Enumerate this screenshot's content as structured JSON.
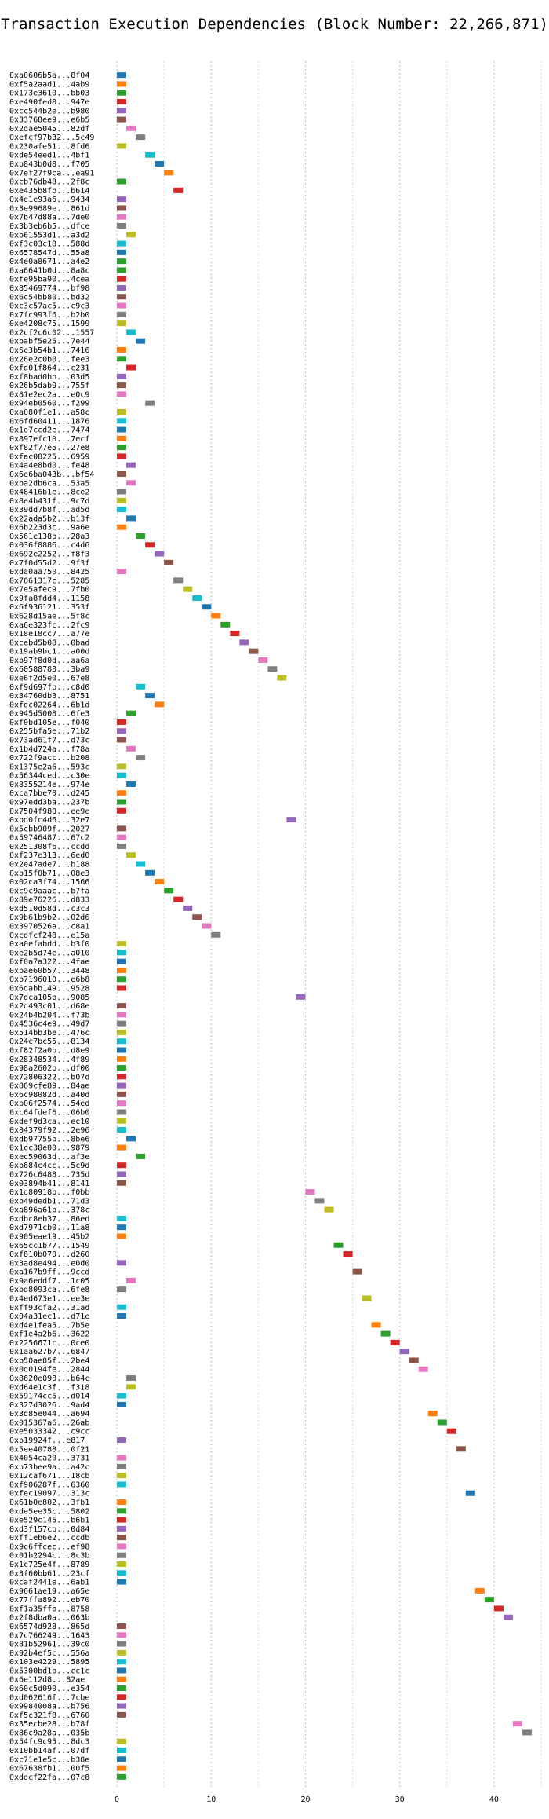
{
  "chart_data": {
    "type": "bar",
    "orientation": "horizontal",
    "title": "Transaction Execution Dependencies (Block Number: 22,266,871)",
    "xlabel": "",
    "ylabel": "",
    "xlim": [
      -2,
      45
    ],
    "x_ticks": [
      0,
      10,
      20,
      30,
      40
    ],
    "grid": true,
    "colors": [
      "#1f77b4",
      "#ff7f0e",
      "#2ca02c",
      "#d62728",
      "#9467bd",
      "#8c564b",
      "#e377c2",
      "#7f7f7f",
      "#bcbd22",
      "#17becf"
    ],
    "transactions": [
      "0xa0606b5a...8f04",
      "0xf5a2aad1...4ab9",
      "0x173e3610...bb03",
      "0xe490fed8...947e",
      "0xcc544b2e...b980",
      "0x33768ee9...e6b5",
      "0x2dae5045...82df",
      "0xefcf97b32...5c49",
      "0x230afe51...8fd6",
      "0xde54eed1...4bf1",
      "0xb843b0d8...f705",
      "0x7ef27f9ca...ea91",
      "0xcb76db48...2f8c",
      "0xe435b8fb...b614",
      "0x4e1e93a6...9434",
      "0x3e99689e...861d",
      "0x7b47d88a...7de0",
      "0x3b3eb6b5...dfce",
      "0xb61553d1...a3d2",
      "0xf3c03c18...588d",
      "0x6578547d...55a8",
      "0x4e0a8671...a4e2",
      "0xa6641b0d...8a8c",
      "0xfe95ba90...4cea",
      "0x85469774...bf98",
      "0x6c54bb80...bd32",
      "0xc3c57ac5...c9c3",
      "0x7fc993f6...b2b0",
      "0xe4208c75...1599",
      "0x2cf2c6c02...1557",
      "0xbabf5e25...7e44",
      "0x6c3b54b1...7416",
      "0x26e2c0b0...fee3",
      "0xfd01f864...c231",
      "0xf8bad0bb...03d5",
      "0x26b5dab9...755f",
      "0x81e2ec2a...e0c9",
      "0x94eb0560...f299",
      "0xa080f1e1...a58c",
      "0x6fd60411...1876",
      "0x1e7ccd2e...7474",
      "0x897efc10...7ecf",
      "0xf82f77e5...27e8",
      "0xfac08225...6959",
      "0x4a4e8bd0...fe48",
      "0x6e6ba043b...bf54",
      "0xba2db6ca...53a5",
      "0x48416b1e...8ce2",
      "0x8e4b431f...9c7d",
      "0x39dd7b8f...ad5d",
      "0x22ada5b2...b13f",
      "0x6b223d3c...9a6e",
      "0x561e138b...28a3",
      "0x036f8886...c4d6",
      "0x692e2252...f8f3",
      "0x7f0d55d2...9f3f",
      "0xda0aa750...8425",
      "0x7661317c...5285",
      "0x7e5afec9...7fb0",
      "0x9fa8fdd4...1158",
      "0x6f936121...353f",
      "0x628d15ae...5f8c",
      "0xa6e323fc...2fc9",
      "0x18e18cc7...a77e",
      "0xcebd5b08...0bad",
      "0x19ab9bc1...a00d",
      "0xb97f8d0d...aa6a",
      "0x60588783...3ba9",
      "0xe6f2d5e0...67e8",
      "0xf9d697fb...c8d0",
      "0x34760db3...8751",
      "0xfdc02264...6b1d",
      "0x945d5008...6fe3",
      "0xf0bd105e...f040",
      "0x255bfa5e...71b2",
      "0x73ad61f7...d73c",
      "0x1b4d724a...f78a",
      "0x722f9acc...b208",
      "0x1375e2a6...593c",
      "0x56344ced...c30e",
      "0x8355214e...974e",
      "0xca7bbe70...d245",
      "0x97edd3ba...237b",
      "0x7504f980...ee9e",
      "0xbd0fc4d6...32e7",
      "0x5cbb909f...2027",
      "0x59746487...67c2",
      "0x251308f6...ccdd",
      "0xf237e313...6ed0",
      "0x2e47ade7...b188",
      "0xb15f0b71...08e3",
      "0x02ca3f74...1566",
      "0xc9c9aaac...b7fa",
      "0x89e76226...d833",
      "0xd510d58d...c3c3",
      "0x9b61b9b2...02d6",
      "0x3970526a...c8a1",
      "0xcdfcf248...e15a",
      "0xa0efabdd...b3f0",
      "0xe2b5d74e...a010",
      "0xf0a7a322...4fae",
      "0xbae60b57...3448",
      "0xb7196010...e6b8",
      "0x6dabb149...9528",
      "0x7dca105b...9085",
      "0x2d493c01...d68e",
      "0x24b4b204...f73b",
      "0x4536c4e9...49d7",
      "0x514bb3be...476c",
      "0x24c7bc55...8134",
      "0xf82f2a0b...d8e9",
      "0x28348534...4f89",
      "0x98a2602b...df00",
      "0x72806322...b07d",
      "0x869cfe89...84ae",
      "0x6c98082d...a40d",
      "0xb06f2574...54ed",
      "0xc64fdef6...06b0",
      "0xdef9d3ca...ec10",
      "0x04379f92...2e96",
      "0xdb97755b...8be6",
      "0x1cc38e00...9879",
      "0xec59063d...af3e",
      "0xb684c4cc...5c9d",
      "0x726c6488...735d",
      "0x03894b41...8141",
      "0x1d80918b...f0bb",
      "0xb49dedb1...71d3",
      "0xa896a61b...378c",
      "0xdbc8eb37...86ed",
      "0xd7971cb0...11a8",
      "0x905eae19...45b2",
      "0x65cc1b77...1549",
      "0xf810b070...d260",
      "0x3ad8e494...e0d0",
      "0xa167b9ff...9ccd",
      "0x9a6eddf7...1c05",
      "0xbd8093ca...6fe8",
      "0x4ed673e1...ee3e",
      "0xff93cfa2...31ad",
      "0x04a31ec1...d71e",
      "0xd4e1fea5...7b5e",
      "0xf1e4a2b6...3622",
      "0x2256671c...0ce0",
      "0x1aa627b7...6847",
      "0xb50ae85f...2be4",
      "0x0d0194fe...2844",
      "0x8620e098...b64c",
      "0xd64e1c3f...f318",
      "0x59174cc5...d014",
      "0x327d3026...9ad4",
      "0x3d85e044...a694",
      "0x015367a6...26ab",
      "0xe5033342...c9cc",
      "0xb19924f...e817",
      "0x5ee40788...0f21",
      "0x4054ca20...3731",
      "0xb73bee9a...a42c",
      "0x12caf671...18cb",
      "0xf906287f...6360",
      "0xfec19097...313c",
      "0x61b0e802...3fb1",
      "0xde5ee35c...5802",
      "0xe529c145...b6b1",
      "0xd3f157cb...0d84",
      "0xff1eb6e2...ccdb",
      "0x9c6ffcec...ef98",
      "0x01b2294c...8c3b",
      "0x1c725e4f...8789",
      "0x3f60bb61...23cf",
      "0xcaf2441e...6ab1",
      "0x9661ae19...a65e",
      "0x77ffa892...eb70",
      "0xf1a35ffb...8758",
      "0x2f8dba0a...063b",
      "0x6574d928...865d",
      "0x7c766249...1643",
      "0x81b52961...39c0",
      "0x92b4ef5c...556a",
      "0x103e4229...5895",
      "0x5300bd1b...cc1c",
      "0x6e112d8...82ae",
      "0x60c5d090...e354",
      "0xd062616f...7cbe",
      "0x9984008a...b756",
      "0xf5c321f8...6760",
      "0x35ecbe28...b78f",
      "0x86c9a28a...035b",
      "0x54fc9c95...8dc3",
      "0x10bb14af...07df",
      "0xc71e1e5c...b38e",
      "0x67638fb1...00f5",
      "0xddcf22fa...07c8"
    ],
    "start": [
      0,
      0,
      0,
      0,
      0,
      0,
      1,
      2,
      0,
      3,
      4,
      5,
      0,
      6,
      0,
      0,
      0,
      0,
      1,
      0,
      0,
      0,
      0,
      0,
      0,
      0,
      0,
      0,
      0,
      1,
      2,
      0,
      0,
      1,
      0,
      0,
      0,
      3,
      0,
      0,
      0,
      0,
      0,
      0,
      1,
      0,
      1,
      0,
      0,
      0,
      1,
      0,
      2,
      3,
      4,
      5,
      0,
      6,
      7,
      8,
      9,
      10,
      11,
      12,
      13,
      14,
      15,
      16,
      17,
      2,
      3,
      4,
      1,
      0,
      0,
      0,
      1,
      2,
      0,
      0,
      1,
      0,
      0,
      0,
      18,
      0,
      0,
      0,
      1,
      2,
      3,
      4,
      5,
      6,
      7,
      8,
      9,
      10,
      0,
      0,
      0,
      0,
      0,
      0,
      19,
      0,
      0,
      0,
      0,
      0,
      0,
      0,
      0,
      0,
      0,
      0,
      0,
      0,
      0,
      0,
      1,
      0,
      2,
      0,
      0,
      0,
      20,
      21,
      22,
      0,
      0,
      0,
      23,
      24,
      0,
      25,
      1,
      0,
      26,
      0,
      0,
      27,
      28,
      29,
      30,
      31,
      32,
      1,
      1,
      0,
      0,
      33,
      34,
      35,
      0,
      36,
      0,
      0,
      0,
      0,
      37,
      0,
      0,
      0,
      0,
      0,
      0,
      0,
      0,
      0,
      0,
      38,
      39,
      40,
      41,
      0,
      0,
      0,
      0,
      0,
      0,
      0,
      0,
      0,
      0,
      0,
      42,
      43,
      0,
      0,
      0,
      0,
      0
    ],
    "duration": [
      1,
      1,
      1,
      1,
      1,
      1,
      1,
      1,
      1,
      1,
      1,
      1,
      1,
      1,
      1,
      1,
      1,
      1,
      1,
      1,
      1,
      1,
      1,
      1,
      1,
      1,
      1,
      1,
      1,
      1,
      1,
      1,
      1,
      1,
      1,
      1,
      1,
      1,
      1,
      1,
      1,
      1,
      1,
      1,
      1,
      1,
      1,
      1,
      1,
      1,
      1,
      1,
      1,
      1,
      1,
      1,
      1,
      1,
      1,
      1,
      1,
      1,
      1,
      1,
      1,
      1,
      1,
      1,
      1,
      1,
      1,
      1,
      1,
      1,
      1,
      1,
      1,
      1,
      1,
      1,
      1,
      1,
      1,
      1,
      1,
      1,
      1,
      1,
      1,
      1,
      1,
      1,
      1,
      1,
      1,
      1,
      1,
      1,
      1,
      1,
      1,
      1,
      1,
      1,
      1,
      1,
      1,
      1,
      1,
      1,
      1,
      1,
      1,
      1,
      1,
      1,
      1,
      1,
      1,
      1,
      1,
      1,
      1,
      1,
      1,
      1,
      1,
      1,
      1,
      1,
      1,
      1,
      1,
      1,
      1,
      1,
      1,
      1,
      1,
      1,
      1,
      1,
      1,
      1,
      1,
      1,
      1,
      1,
      1,
      1,
      1,
      1,
      1,
      1,
      1,
      1,
      1,
      1,
      1,
      1,
      1,
      1,
      1,
      1,
      1,
      1,
      1,
      1,
      1,
      1,
      1,
      1,
      1,
      1,
      1,
      1,
      1,
      1,
      1,
      1,
      1,
      1,
      1,
      1,
      1,
      1,
      1,
      1,
      1,
      1,
      1,
      1,
      1
    ],
    "color_index": [
      0,
      1,
      2,
      3,
      4,
      5,
      6,
      7,
      8,
      9,
      0,
      1,
      2,
      3,
      4,
      5,
      6,
      7,
      8,
      9,
      0,
      2,
      2,
      3,
      4,
      5,
      6,
      7,
      8,
      9,
      0,
      1,
      2,
      3,
      4,
      5,
      6,
      7,
      8,
      9,
      0,
      1,
      2,
      3,
      4,
      5,
      6,
      7,
      8,
      9,
      0,
      1,
      2,
      3,
      4,
      5,
      6,
      7,
      8,
      9,
      0,
      1,
      2,
      3,
      4,
      5,
      6,
      7,
      8,
      9,
      0,
      1,
      2,
      3,
      4,
      5,
      6,
      7,
      8,
      9,
      0,
      1,
      2,
      3,
      4,
      5,
      6,
      7,
      8,
      9,
      0,
      1,
      2,
      3,
      4,
      5,
      6,
      7,
      8,
      9,
      0,
      1,
      2,
      3,
      4,
      5,
      6,
      7,
      8,
      9,
      0,
      1,
      2,
      3,
      4,
      5,
      6,
      7,
      8,
      9,
      0,
      1,
      2,
      3,
      4,
      5,
      6,
      7,
      8,
      9,
      0,
      1,
      2,
      3,
      4,
      5,
      6,
      7,
      8,
      9,
      0,
      1,
      2,
      3,
      4,
      5,
      6,
      7,
      8,
      9,
      0,
      1,
      2,
      3,
      4,
      5,
      6,
      7,
      8,
      9,
      0,
      1,
      2,
      3,
      4,
      5,
      6,
      7,
      8,
      9,
      0,
      1,
      2,
      3,
      4,
      5,
      6,
      7,
      8,
      9,
      0,
      1,
      2,
      3,
      4,
      5,
      6,
      7,
      8,
      9,
      0,
      1,
      2,
      3,
      4
    ]
  }
}
